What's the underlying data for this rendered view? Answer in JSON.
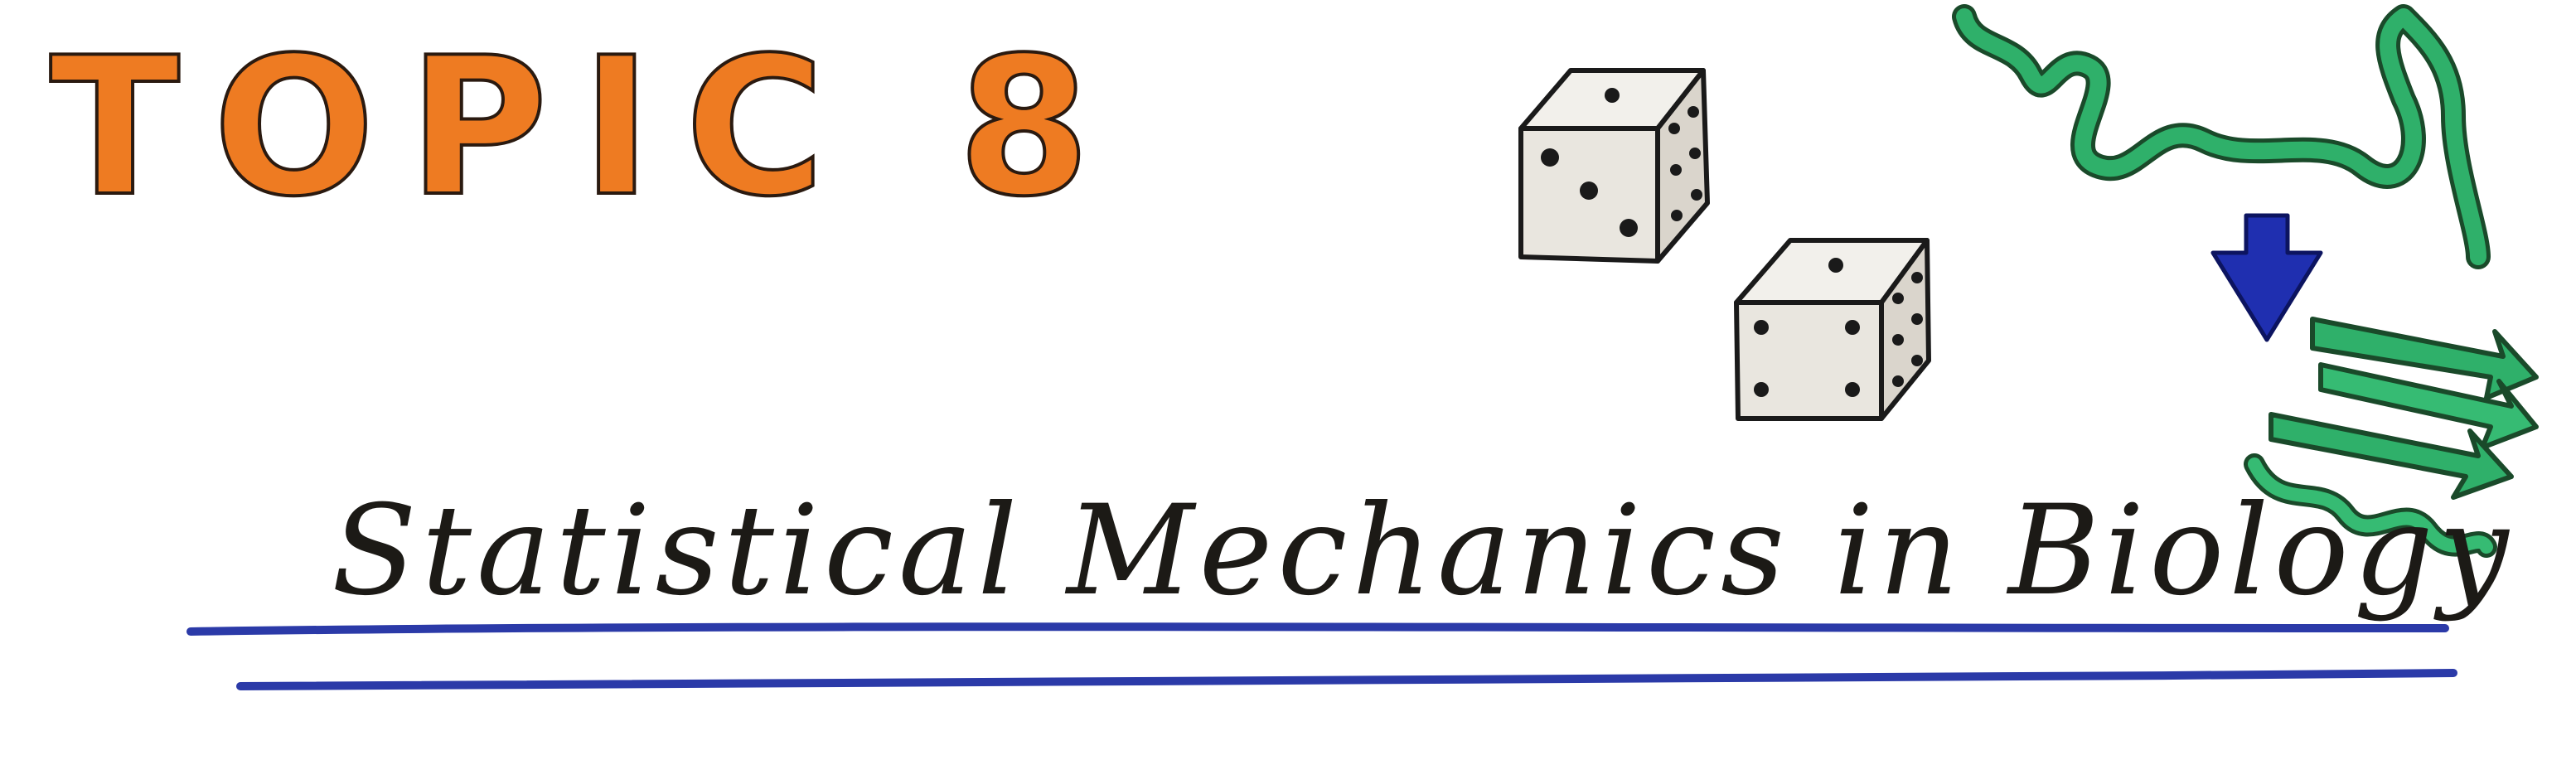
{
  "heading": {
    "topic_label": "TOPIC 8",
    "subtitle": "Statistical Mechanics in Biology"
  },
  "illustrations": {
    "dice": [
      "die-icon",
      "die-icon"
    ],
    "protein_folding": [
      "unfolded-chain-icon",
      "arrow-down-icon",
      "folded-protein-icon"
    ]
  },
  "colors": {
    "background": "#ffffff",
    "topic_orange": "#ee7b22",
    "outline": "#2a1a10",
    "die_face": "#ece9e2",
    "protein_green": "#2fb06a",
    "arrow_blue": "#1f2fb0",
    "underline_blue": "#2b3aa8",
    "text_dark": "#1c1a16"
  }
}
